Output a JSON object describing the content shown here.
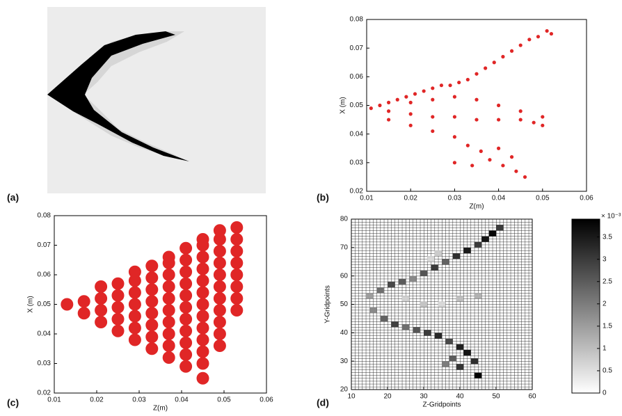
{
  "chart_data": [
    {
      "type": "image",
      "label": "(a)"
    },
    {
      "type": "scatter",
      "label": "(b)",
      "xlabel": "Z(m)",
      "ylabel": "X (m)",
      "color": "#e02626",
      "xlim": [
        0.01,
        0.06
      ],
      "xticks": [
        0.01,
        0.02,
        0.03,
        0.04,
        0.05,
        0.06
      ],
      "ylim": [
        0.02,
        0.08
      ],
      "yticks": [
        0.02,
        0.03,
        0.04,
        0.05,
        0.06,
        0.07,
        0.08
      ],
      "x": [
        0.011,
        0.013,
        0.015,
        0.017,
        0.019,
        0.021,
        0.023,
        0.025,
        0.027,
        0.029,
        0.031,
        0.033,
        0.035,
        0.037,
        0.039,
        0.041,
        0.043,
        0.045,
        0.047,
        0.049,
        0.051,
        0.052,
        0.015,
        0.02,
        0.025,
        0.03,
        0.035,
        0.04,
        0.045,
        0.048,
        0.05,
        0.05,
        0.02,
        0.025,
        0.03,
        0.035,
        0.04,
        0.045,
        0.015,
        0.02,
        0.025,
        0.03,
        0.033,
        0.036,
        0.038,
        0.041,
        0.044,
        0.046,
        0.03,
        0.034,
        0.04,
        0.043
      ],
      "y": [
        0.049,
        0.05,
        0.051,
        0.052,
        0.053,
        0.054,
        0.055,
        0.056,
        0.057,
        0.057,
        0.058,
        0.059,
        0.061,
        0.063,
        0.065,
        0.067,
        0.069,
        0.071,
        0.073,
        0.074,
        0.076,
        0.075,
        0.048,
        0.047,
        0.046,
        0.046,
        0.045,
        0.045,
        0.045,
        0.044,
        0.046,
        0.043,
        0.051,
        0.052,
        0.053,
        0.052,
        0.05,
        0.048,
        0.045,
        0.043,
        0.041,
        0.039,
        0.036,
        0.034,
        0.031,
        0.029,
        0.027,
        0.025,
        0.03,
        0.029,
        0.035,
        0.032
      ]
    },
    {
      "type": "scatter",
      "label": "(c)",
      "xlabel": "Z(m)",
      "ylabel": "X (m)",
      "color": "#e02626",
      "xlim": [
        0.01,
        0.06
      ],
      "xticks": [
        0.01,
        0.02,
        0.03,
        0.04,
        0.05,
        0.06
      ],
      "ylim": [
        0.02,
        0.08
      ],
      "yticks": [
        0.02,
        0.03,
        0.04,
        0.05,
        0.06,
        0.07,
        0.08
      ],
      "x": [
        0.013,
        0.017,
        0.017,
        0.021,
        0.021,
        0.021,
        0.021,
        0.025,
        0.025,
        0.025,
        0.025,
        0.025,
        0.029,
        0.029,
        0.029,
        0.029,
        0.029,
        0.029,
        0.029,
        0.033,
        0.033,
        0.033,
        0.033,
        0.033,
        0.033,
        0.033,
        0.033,
        0.037,
        0.037,
        0.037,
        0.037,
        0.037,
        0.037,
        0.037,
        0.037,
        0.037,
        0.037,
        0.041,
        0.041,
        0.041,
        0.041,
        0.041,
        0.041,
        0.041,
        0.041,
        0.041,
        0.041,
        0.041,
        0.045,
        0.045,
        0.045,
        0.045,
        0.045,
        0.045,
        0.045,
        0.045,
        0.045,
        0.045,
        0.045,
        0.045,
        0.045,
        0.049,
        0.049,
        0.049,
        0.049,
        0.049,
        0.049,
        0.049,
        0.049,
        0.049,
        0.049,
        0.049,
        0.053,
        0.053,
        0.053,
        0.053,
        0.053,
        0.053,
        0.053,
        0.053
      ],
      "y": [
        0.05,
        0.047,
        0.051,
        0.044,
        0.048,
        0.052,
        0.056,
        0.041,
        0.045,
        0.049,
        0.053,
        0.057,
        0.038,
        0.042,
        0.046,
        0.05,
        0.054,
        0.058,
        0.061,
        0.035,
        0.039,
        0.043,
        0.047,
        0.051,
        0.055,
        0.059,
        0.063,
        0.032,
        0.036,
        0.04,
        0.044,
        0.048,
        0.052,
        0.056,
        0.06,
        0.064,
        0.066,
        0.029,
        0.033,
        0.037,
        0.041,
        0.045,
        0.049,
        0.053,
        0.057,
        0.061,
        0.065,
        0.069,
        0.025,
        0.03,
        0.034,
        0.038,
        0.042,
        0.046,
        0.05,
        0.054,
        0.058,
        0.062,
        0.066,
        0.07,
        0.072,
        0.036,
        0.04,
        0.044,
        0.048,
        0.052,
        0.056,
        0.06,
        0.064,
        0.068,
        0.072,
        0.075,
        0.048,
        0.052,
        0.056,
        0.06,
        0.064,
        0.068,
        0.072,
        0.076
      ]
    },
    {
      "type": "heatmap",
      "label": "(d)",
      "xlabel": "Z-Gridpoints",
      "ylabel": "Y-Gridpoints",
      "xlim": [
        10,
        60
      ],
      "xticks": [
        10,
        20,
        30,
        40,
        50,
        60
      ],
      "ylim": [
        20,
        80
      ],
      "yticks": [
        20,
        30,
        40,
        50,
        60,
        70,
        80
      ],
      "clim": [
        0,
        3.9
      ],
      "cticks": [
        0,
        0.5,
        1,
        1.5,
        2,
        2.5,
        3,
        3.5
      ],
      "colorbar_label": "× 10⁻³",
      "x": [
        15,
        18,
        21,
        24,
        27,
        30,
        33,
        36,
        39,
        42,
        45,
        47,
        49,
        51,
        34,
        32,
        25,
        30,
        35,
        40,
        45,
        16,
        19,
        22,
        25,
        28,
        31,
        34,
        37,
        40,
        42,
        44,
        45,
        36,
        38,
        40
      ],
      "y": [
        53,
        55,
        57,
        58,
        59,
        61,
        63,
        65,
        67,
        69,
        71,
        73,
        75,
        77,
        68,
        66,
        52,
        50,
        50,
        52,
        53,
        48,
        45,
        43,
        42,
        41,
        40,
        39,
        37,
        35,
        33,
        30,
        25,
        29,
        31,
        28
      ],
      "values": [
        1.5,
        2.2,
        2.8,
        2.5,
        1.8,
        2.6,
        3.0,
        2.4,
        3.2,
        3.5,
        3.0,
        3.6,
        3.8,
        3.0,
        0.8,
        0.6,
        0.7,
        0.9,
        0.6,
        1.0,
        1.2,
        1.8,
        2.4,
        2.9,
        2.2,
        2.6,
        3.0,
        3.3,
        2.8,
        3.4,
        3.6,
        3.2,
        3.9,
        2.0,
        2.5,
        3.1
      ]
    }
  ]
}
